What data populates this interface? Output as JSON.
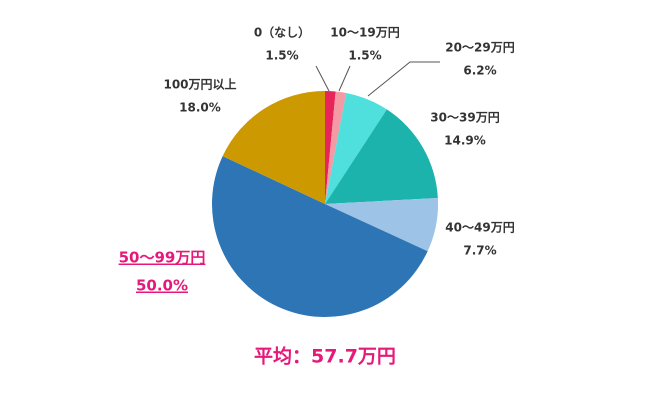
{
  "chart_data": {
    "type": "pie",
    "categories": [
      "0（なし）",
      "10〜19万円",
      "20〜29万円",
      "30〜39万円",
      "40〜49万円",
      "50〜99万円",
      "100万円以上"
    ],
    "values": [
      1.5,
      1.5,
      6.2,
      14.9,
      7.7,
      50.0,
      18.0
    ],
    "value_labels": [
      "1.5%",
      "1.5%",
      "6.2%",
      "14.9%",
      "7.7%",
      "50.0%",
      "18.0%"
    ],
    "colors": [
      "#e8245a",
      "#f49aa4",
      "#4fe0de",
      "#1db3ad",
      "#9dc3e6",
      "#2e75b6",
      "#cc9900"
    ],
    "highlight_index": 5,
    "highlight_color": "#e6197a",
    "annotation": "平均：57.7万円"
  }
}
